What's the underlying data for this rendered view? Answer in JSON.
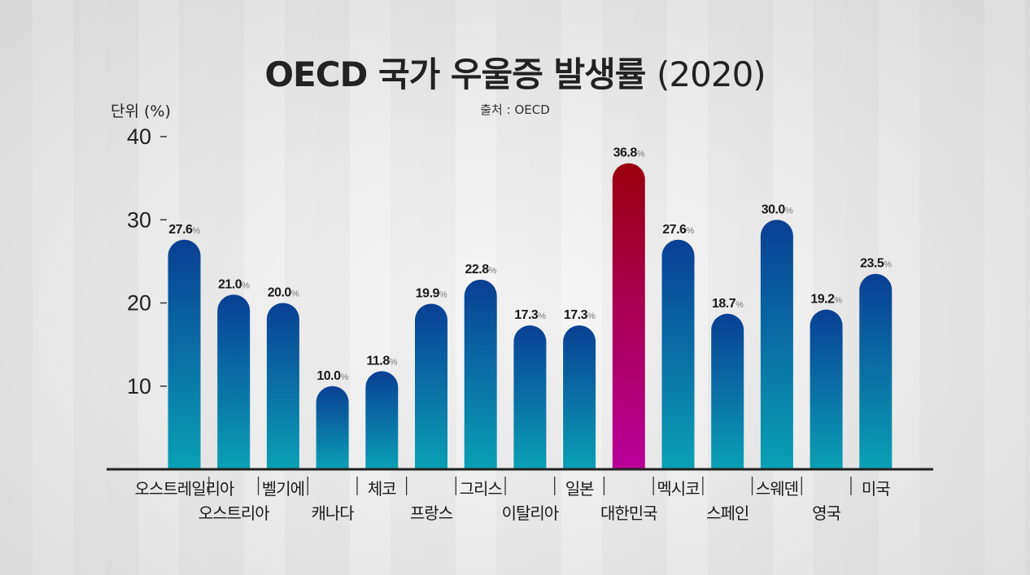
{
  "title_main": "OECD 국가 우울증 발생률",
  "title_year": "(2020)",
  "source": "출처 : OECD",
  "unit_label": "단위 (%)",
  "colors": {
    "bar_top": "#0a3f94",
    "bar_bottom": "#0aa0b4",
    "highlight_top": "#9a0010",
    "highlight_bottom": "#b8009a",
    "axis": "#222222"
  },
  "chart_data": {
    "type": "bar",
    "ylabel": "단위 (%)",
    "ylim": [
      0,
      40
    ],
    "yticks": [
      "10",
      "20",
      "30",
      "40"
    ],
    "value_suffix": "%",
    "highlight_index": 9,
    "categories": [
      "오스트레일리아",
      "오스트리아",
      "벨기에",
      "캐나다",
      "체코",
      "프랑스",
      "그리스",
      "이탈리아",
      "일본",
      "대한민국",
      "멕시코",
      "스페인",
      "스웨덴",
      "영국",
      "미국"
    ],
    "values": [
      27.6,
      21.0,
      20.0,
      10.0,
      11.8,
      19.9,
      22.8,
      17.3,
      17.3,
      36.8,
      27.6,
      18.7,
      30.0,
      19.2,
      23.5
    ],
    "value_labels": [
      "27.6",
      "21.0",
      "20.0",
      "10.0",
      "11.8",
      "19.9",
      "22.8",
      "17.3",
      "17.3",
      "36.8",
      "27.6",
      "18.7",
      "30.0",
      "19.2",
      "23.5"
    ]
  }
}
